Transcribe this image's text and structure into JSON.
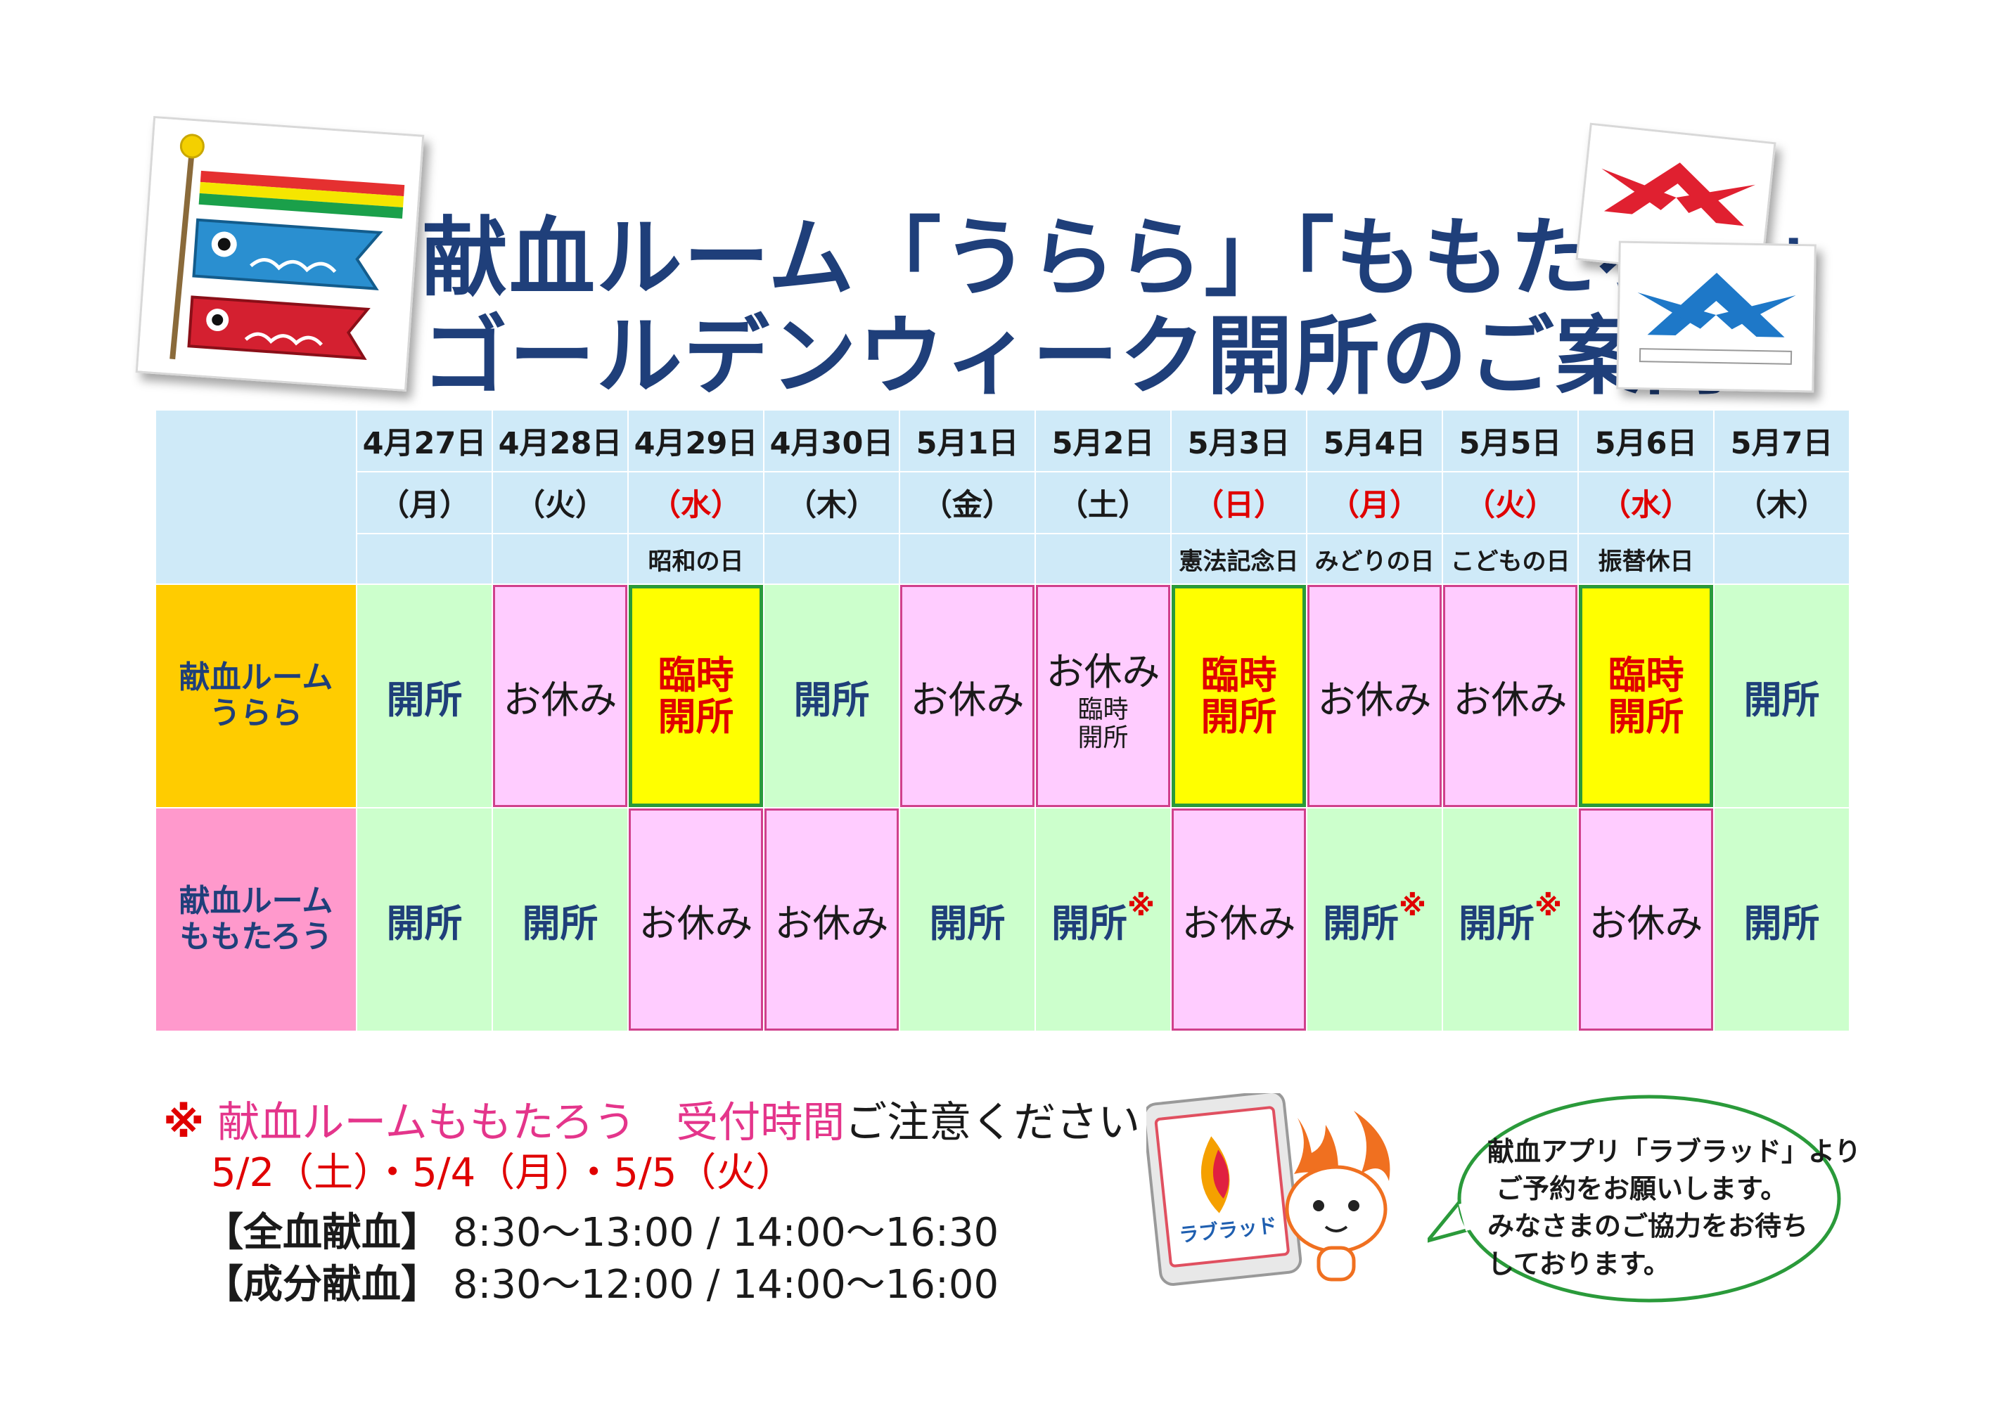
{
  "title": {
    "line1": "献血ルーム「うらら」「ももたろう」",
    "line2": "ゴールデンウィーク開所のご案内"
  },
  "days": [
    {
      "date": "4月27日",
      "weekday": "（月）",
      "holiday": "",
      "red": false
    },
    {
      "date": "4月28日",
      "weekday": "（火）",
      "holiday": "",
      "red": false
    },
    {
      "date": "4月29日",
      "weekday": "（水）",
      "holiday": "昭和の日",
      "red": true
    },
    {
      "date": "4月30日",
      "weekday": "（木）",
      "holiday": "",
      "red": false
    },
    {
      "date": "5月1日",
      "weekday": "（金）",
      "holiday": "",
      "red": false
    },
    {
      "date": "5月2日",
      "weekday": "（土）",
      "holiday": "",
      "red": false
    },
    {
      "date": "5月3日",
      "weekday": "（日）",
      "holiday": "憲法記念日",
      "red": true
    },
    {
      "date": "5月4日",
      "weekday": "（月）",
      "holiday": "みどりの日",
      "red": true
    },
    {
      "date": "5月5日",
      "weekday": "（火）",
      "holiday": "こどもの日",
      "red": true
    },
    {
      "date": "5月6日",
      "weekday": "（水）",
      "holiday": "振替休日",
      "red": true
    },
    {
      "date": "5月7日",
      "weekday": "（木）",
      "holiday": "",
      "red": false
    }
  ],
  "rooms": [
    {
      "label_lines": [
        "献血ルーム",
        "うらら"
      ],
      "style": "urara",
      "cells": [
        {
          "status": "open",
          "text": "開所"
        },
        {
          "status": "closed",
          "text": "お休み"
        },
        {
          "status": "temp",
          "lines": [
            "臨時",
            "開所"
          ]
        },
        {
          "status": "open",
          "text": "開所"
        },
        {
          "status": "closed",
          "text": "お休み"
        },
        {
          "status": "closed",
          "text": "お休み",
          "sub": [
            "臨時",
            "開所"
          ]
        },
        {
          "status": "temp",
          "lines": [
            "臨時",
            "開所"
          ]
        },
        {
          "status": "closed",
          "text": "お休み"
        },
        {
          "status": "closed",
          "text": "お休み"
        },
        {
          "status": "temp",
          "lines": [
            "臨時",
            "開所"
          ]
        },
        {
          "status": "open",
          "text": "開所"
        }
      ]
    },
    {
      "label_lines": [
        "献血ルーム",
        "ももたろう"
      ],
      "style": "momo",
      "cells": [
        {
          "status": "open",
          "text": "開所"
        },
        {
          "status": "open",
          "text": "開所"
        },
        {
          "status": "closed",
          "text": "お休み"
        },
        {
          "status": "closed",
          "text": "お休み"
        },
        {
          "status": "open",
          "text": "開所"
        },
        {
          "status": "open",
          "text": "開所",
          "mark": "※"
        },
        {
          "status": "closed",
          "text": "お休み"
        },
        {
          "status": "open",
          "text": "開所",
          "mark": "※"
        },
        {
          "status": "open",
          "text": "開所",
          "mark": "※"
        },
        {
          "status": "closed",
          "text": "お休み"
        },
        {
          "status": "open",
          "text": "開所"
        }
      ]
    }
  ],
  "notes": {
    "asterisk": "※",
    "room": "献血ルームももたろう",
    "reception": "受付時間",
    "caution": "ご注意ください",
    "dates": "5/2（土）・5/4（月）・5/5（火）",
    "whole_label": "【全血献血】",
    "whole_hours": "8:30〜13:00  /  14:00〜16:30",
    "component_label": "【成分献血】",
    "component_hours": "8:30〜12:00  /  14:00〜16:00"
  },
  "app": {
    "brand": "ラブラッド",
    "bubble_lines": [
      "献血アプリ「ラブラッド」より",
      "ご予約をお願いします。",
      "みなさまのご協力をお待ち",
      "しております。"
    ]
  },
  "colors": {
    "title_navy": "#1f3f7a",
    "header_blue": "#cfeaf8",
    "open_green": "#ccffcc",
    "closed_pink": "#ffccff",
    "temp_yellow": "#ffff00",
    "urara_orange": "#ffcc00",
    "momo_pink": "#ff99cc",
    "holiday_red": "#e00000"
  }
}
